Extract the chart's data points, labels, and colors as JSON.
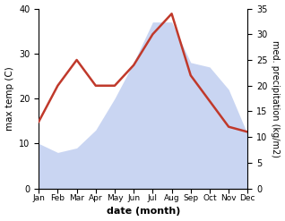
{
  "months": [
    "Jan",
    "Feb",
    "Mar",
    "Apr",
    "May",
    "Jun",
    "Jul",
    "Aug",
    "Sep",
    "Oct",
    "Nov",
    "Dec"
  ],
  "temp": [
    10,
    8,
    9,
    13,
    20,
    28,
    37,
    37,
    28,
    27,
    22,
    12
  ],
  "precip": [
    13,
    20,
    25,
    20,
    20,
    24,
    30,
    34,
    22,
    17,
    12,
    11
  ],
  "precip_color": "#c0392b",
  "temp_ylim": [
    0,
    40
  ],
  "precip_ylim": [
    0,
    35
  ],
  "xlabel": "date (month)",
  "ylabel_left": "max temp (C)",
  "ylabel_right": "med. precipitation (kg/m2)",
  "fill_color": "#b8c8ee",
  "fill_alpha": 0.75,
  "bg_color": "#ffffff",
  "line_width": 1.8
}
